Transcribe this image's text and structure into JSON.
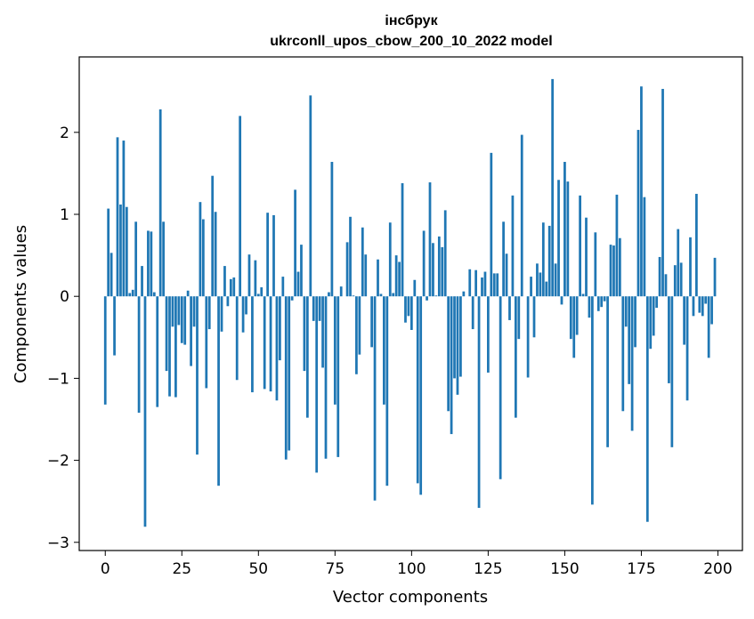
{
  "chart_data": {
    "type": "bar",
    "title": "інсбрук",
    "subtitle": "ukrconll_upos_cbow_200_10_2022 model",
    "xlabel": "Vector components",
    "ylabel": "Components values",
    "xlim": [
      -8.5,
      208
    ],
    "ylim": [
      -3.1,
      2.92
    ],
    "xticks": [
      0,
      25,
      50,
      75,
      100,
      125,
      150,
      175,
      200
    ],
    "yticks": [
      -3,
      -2,
      -1,
      0,
      1,
      2
    ],
    "ytick_labels": [
      "−3",
      "−2",
      "−1",
      "0",
      "1",
      "2"
    ],
    "bar_color": "#1f77b4",
    "grid": false,
    "legend": "none",
    "values": [
      -1.32,
      1.07,
      0.53,
      -0.72,
      1.94,
      1.12,
      1.9,
      1.09,
      0.04,
      0.08,
      0.91,
      -1.42,
      0.37,
      -2.81,
      0.8,
      0.79,
      0.05,
      -1.35,
      2.28,
      0.91,
      -0.91,
      -1.22,
      -0.37,
      -1.23,
      -0.35,
      -0.57,
      -0.59,
      0.07,
      -0.85,
      -0.37,
      -1.93,
      1.15,
      0.94,
      -1.12,
      -0.4,
      1.47,
      1.03,
      -2.31,
      -0.43,
      0.37,
      -0.12,
      0.21,
      0.23,
      -1.02,
      2.2,
      -0.44,
      -0.22,
      0.51,
      -1.17,
      0.44,
      0.03,
      0.11,
      -1.13,
      1.02,
      -1.16,
      0.99,
      -1.27,
      -0.78,
      0.24,
      -1.99,
      -1.88,
      -0.05,
      1.3,
      0.3,
      0.63,
      -0.91,
      -1.48,
      2.45,
      -0.3,
      -2.15,
      -0.3,
      -0.87,
      -1.98,
      0.05,
      1.64,
      -1.32,
      -1.96,
      0.12,
      0.0,
      0.66,
      0.97,
      0.01,
      -0.95,
      -0.71,
      0.84,
      0.51,
      0.0,
      -0.62,
      -2.49,
      0.45,
      0.03,
      -1.32,
      -2.31,
      0.9,
      0.04,
      0.5,
      0.42,
      1.38,
      -0.32,
      -0.24,
      -0.41,
      0.2,
      -2.28,
      -2.42,
      0.8,
      -0.05,
      1.39,
      0.65,
      0.01,
      0.73,
      0.6,
      1.05,
      -1.4,
      -1.68,
      -1.0,
      -1.2,
      -0.98,
      0.06,
      0.0,
      0.33,
      -0.4,
      0.32,
      -2.58,
      0.23,
      0.3,
      -0.93,
      1.75,
      0.28,
      0.28,
      -2.23,
      0.91,
      0.52,
      -0.29,
      1.23,
      -1.48,
      -0.52,
      1.97,
      0.0,
      -0.99,
      0.24,
      -0.5,
      0.4,
      0.29,
      0.9,
      0.18,
      0.86,
      2.65,
      0.4,
      1.42,
      -0.1,
      1.64,
      1.4,
      -0.52,
      -0.75,
      -0.47,
      1.23,
      0.03,
      0.96,
      -0.26,
      -2.54,
      0.78,
      -0.18,
      -0.13,
      -0.06,
      -1.84,
      0.63,
      0.62,
      1.24,
      0.71,
      -1.4,
      -0.37,
      -1.07,
      -1.64,
      -0.62,
      2.03,
      2.56,
      1.21,
      -2.75,
      -0.64,
      -0.48,
      -0.14,
      0.48,
      2.53,
      0.27,
      -1.06,
      -1.84,
      0.38,
      0.82,
      0.41,
      -0.59,
      -1.27,
      0.72,
      -0.24,
      1.25,
      -0.2,
      -0.24,
      -0.09,
      -0.75,
      -0.34,
      0.47
    ]
  }
}
